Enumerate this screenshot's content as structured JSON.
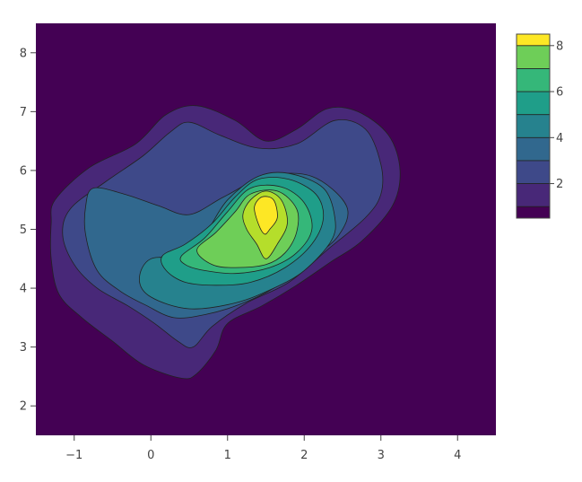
{
  "chart_data": {
    "type": "contour",
    "title": "",
    "xlabel": "",
    "ylabel": "",
    "xlim": [
      -1.5,
      4.5
    ],
    "ylim": [
      1.5,
      8.5
    ],
    "x_ticks": [
      -1,
      0,
      1,
      2,
      3,
      4
    ],
    "y_ticks": [
      2,
      3,
      4,
      5,
      6,
      7,
      8
    ],
    "x_tick_labels": [
      "−1",
      "0",
      "1",
      "2",
      "3",
      "4"
    ],
    "y_tick_labels": [
      "2",
      "3",
      "4",
      "5",
      "6",
      "7",
      "8"
    ],
    "colorbar": {
      "placement": "right",
      "levels": [
        1,
        2,
        3,
        4,
        5,
        6,
        7,
        8
      ],
      "tick_values": [
        2,
        4,
        6,
        8
      ],
      "tick_labels": [
        "2",
        "4",
        "6",
        "8"
      ],
      "zrange": [
        0.5,
        8.5
      ],
      "colors": [
        "#440154",
        "#482878",
        "#3e4989",
        "#31688e",
        "#26828e",
        "#1f9e89",
        "#35b779",
        "#6ece58",
        "#b5de2b",
        "#fde725"
      ]
    },
    "contours": [
      {
        "level": 1,
        "points": [
          [
            -1.25,
            5.5
          ],
          [
            -0.8,
            6.05
          ],
          [
            -0.2,
            6.45
          ],
          [
            0.2,
            6.95
          ],
          [
            0.6,
            7.1
          ],
          [
            1.1,
            6.85
          ],
          [
            1.5,
            6.5
          ],
          [
            1.9,
            6.7
          ],
          [
            2.3,
            7.05
          ],
          [
            2.7,
            7.0
          ],
          [
            3.1,
            6.6
          ],
          [
            3.25,
            6.0
          ],
          [
            3.15,
            5.4
          ],
          [
            2.75,
            4.8
          ],
          [
            2.35,
            4.45
          ],
          [
            1.9,
            4.05
          ],
          [
            1.45,
            3.7
          ],
          [
            1.0,
            3.4
          ],
          [
            0.85,
            2.95
          ],
          [
            0.6,
            2.55
          ],
          [
            0.4,
            2.47
          ],
          [
            -0.1,
            2.7
          ],
          [
            -0.5,
            3.1
          ],
          [
            -0.9,
            3.5
          ],
          [
            -1.2,
            3.9
          ],
          [
            -1.3,
            4.5
          ],
          [
            -1.3,
            5.1
          ]
        ]
      },
      {
        "level": 2,
        "points": [
          [
            -1.05,
            5.35
          ],
          [
            -0.6,
            5.8
          ],
          [
            -0.1,
            6.25
          ],
          [
            0.25,
            6.65
          ],
          [
            0.5,
            6.82
          ],
          [
            0.9,
            6.6
          ],
          [
            1.4,
            6.38
          ],
          [
            1.9,
            6.45
          ],
          [
            2.4,
            6.85
          ],
          [
            2.8,
            6.7
          ],
          [
            3.0,
            6.1
          ],
          [
            3.0,
            5.6
          ],
          [
            2.8,
            5.2
          ],
          [
            2.3,
            4.65
          ],
          [
            1.8,
            4.1
          ],
          [
            1.25,
            3.75
          ],
          [
            0.8,
            3.35
          ],
          [
            0.55,
            3.0
          ],
          [
            0.35,
            3.1
          ],
          [
            0.05,
            3.4
          ],
          [
            -0.3,
            3.7
          ],
          [
            -0.7,
            4.0
          ],
          [
            -1.0,
            4.4
          ],
          [
            -1.15,
            4.9
          ]
        ]
      },
      {
        "level": 3,
        "points": [
          [
            -0.75,
            5.7
          ],
          [
            -0.35,
            5.6
          ],
          [
            0.1,
            5.4
          ],
          [
            0.5,
            5.25
          ],
          [
            0.95,
            5.55
          ],
          [
            1.5,
            5.9
          ],
          [
            2.1,
            5.9
          ],
          [
            2.55,
            5.4
          ],
          [
            2.45,
            4.9
          ],
          [
            2.05,
            4.45
          ],
          [
            1.6,
            4.0
          ],
          [
            1.15,
            3.72
          ],
          [
            0.7,
            3.55
          ],
          [
            0.3,
            3.5
          ],
          [
            -0.05,
            3.7
          ],
          [
            -0.4,
            3.95
          ],
          [
            -0.7,
            4.3
          ],
          [
            -0.85,
            4.9
          ],
          [
            -0.85,
            5.4
          ]
        ]
      },
      {
        "level": 4,
        "points": [
          [
            0.5,
            4.55
          ],
          [
            0.75,
            5.0
          ],
          [
            1.0,
            5.5
          ],
          [
            1.4,
            5.9
          ],
          [
            1.8,
            5.95
          ],
          [
            2.25,
            5.7
          ],
          [
            2.4,
            5.2
          ],
          [
            2.35,
            4.8
          ],
          [
            2.0,
            4.3
          ],
          [
            1.6,
            4.0
          ],
          [
            1.1,
            3.75
          ],
          [
            0.5,
            3.65
          ],
          [
            0.0,
            3.85
          ],
          [
            -0.15,
            4.15
          ],
          [
            0.0,
            4.5
          ]
        ]
      },
      {
        "level": 5,
        "points": [
          [
            0.15,
            4.55
          ],
          [
            0.45,
            4.75
          ],
          [
            0.8,
            5.1
          ],
          [
            1.1,
            5.55
          ],
          [
            1.4,
            5.85
          ],
          [
            1.8,
            5.85
          ],
          [
            2.15,
            5.6
          ],
          [
            2.25,
            5.2
          ],
          [
            2.1,
            4.75
          ],
          [
            1.75,
            4.35
          ],
          [
            1.3,
            4.1
          ],
          [
            0.85,
            4.05
          ],
          [
            0.45,
            4.1
          ],
          [
            0.2,
            4.3
          ]
        ]
      },
      {
        "level": 6,
        "points": [
          [
            0.4,
            4.55
          ],
          [
            0.7,
            4.85
          ],
          [
            1.0,
            5.3
          ],
          [
            1.3,
            5.7
          ],
          [
            1.7,
            5.72
          ],
          [
            2.0,
            5.45
          ],
          [
            2.1,
            5.0
          ],
          [
            1.9,
            4.6
          ],
          [
            1.55,
            4.35
          ],
          [
            1.1,
            4.25
          ],
          [
            0.7,
            4.3
          ],
          [
            0.45,
            4.4
          ]
        ]
      },
      {
        "level": 7,
        "points": [
          [
            0.6,
            4.65
          ],
          [
            0.85,
            4.95
          ],
          [
            1.1,
            5.3
          ],
          [
            1.3,
            5.6
          ],
          [
            1.65,
            5.65
          ],
          [
            1.9,
            5.35
          ],
          [
            1.9,
            4.95
          ],
          [
            1.75,
            4.6
          ],
          [
            1.5,
            4.4
          ],
          [
            1.1,
            4.35
          ],
          [
            0.8,
            4.4
          ]
        ]
      },
      {
        "level": 8,
        "points": [
          [
            1.2,
            5.25
          ],
          [
            1.3,
            5.5
          ],
          [
            1.5,
            5.65
          ],
          [
            1.7,
            5.5
          ],
          [
            1.78,
            5.1
          ],
          [
            1.65,
            4.75
          ],
          [
            1.5,
            4.5
          ],
          [
            1.38,
            4.75
          ],
          [
            1.25,
            5.0
          ]
        ]
      },
      {
        "level": 9,
        "points": [
          [
            1.35,
            5.38
          ],
          [
            1.45,
            5.55
          ],
          [
            1.6,
            5.5
          ],
          [
            1.65,
            5.2
          ],
          [
            1.55,
            5.0
          ],
          [
            1.48,
            4.92
          ],
          [
            1.4,
            5.1
          ]
        ]
      }
    ]
  }
}
